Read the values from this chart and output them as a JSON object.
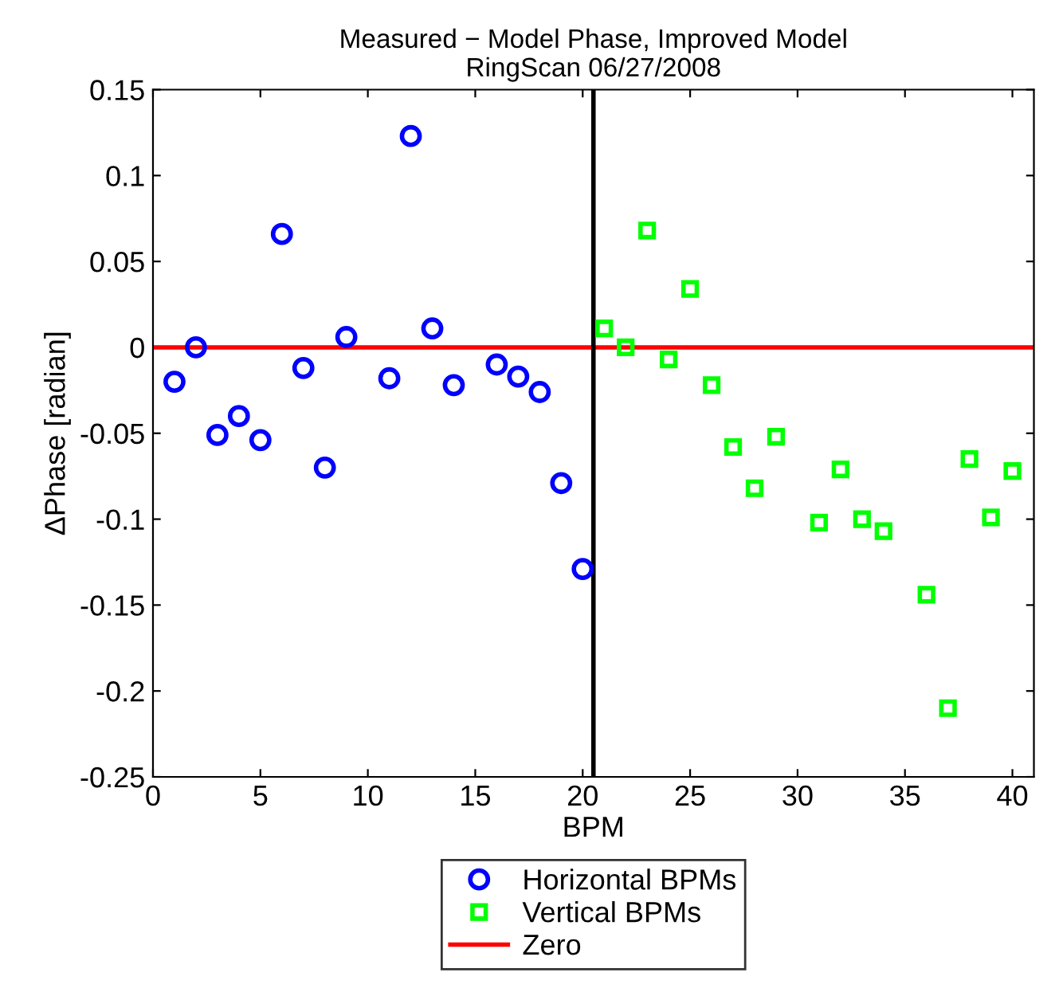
{
  "chart_data": {
    "type": "scatter",
    "title": "Measured − Model Phase, Improved Model\nRingScan 06/27/2008",
    "xlabel": "BPM",
    "ylabel": "ΔPhase [radian]",
    "series": [
      {
        "name": "Horizontal BPMs",
        "color": "#0000ff",
        "marker": "circle",
        "x": [
          1,
          2,
          3,
          4,
          5,
          6,
          7,
          8,
          9,
          11,
          12,
          13,
          14,
          16,
          17,
          18,
          19,
          20
        ],
        "values": [
          -0.02,
          0.0,
          -0.051,
          -0.04,
          -0.054,
          0.066,
          -0.012,
          -0.07,
          0.006,
          -0.018,
          0.123,
          0.011,
          -0.022,
          -0.01,
          -0.017,
          -0.026,
          -0.079,
          -0.129
        ]
      },
      {
        "name": "Vertical BPMs",
        "color": "#00ff00",
        "marker": "square",
        "x": [
          21,
          22,
          23,
          24,
          25,
          26,
          27,
          28,
          29,
          31,
          32,
          33,
          34,
          36,
          37,
          38,
          39,
          40
        ],
        "values": [
          0.011,
          0.0,
          0.068,
          -0.007,
          0.034,
          -0.022,
          -0.058,
          -0.082,
          -0.052,
          -0.102,
          -0.071,
          -0.1,
          -0.107,
          -0.144,
          -0.21,
          -0.065,
          -0.099,
          -0.072
        ]
      },
      {
        "name": "Zero",
        "type": "line",
        "color": "#ff0000",
        "marker": "none",
        "line_style": "solid",
        "x": [
          0,
          41
        ],
        "values": [
          0,
          0
        ]
      }
    ],
    "ref_lines": [
      {
        "axis": "x",
        "value": 20.5,
        "color": "#000000",
        "line_style": "solid"
      }
    ],
    "xlim": [
      0,
      41
    ],
    "ylim": [
      -0.25,
      0.15
    ],
    "xticks": [
      0,
      5,
      10,
      15,
      20,
      25,
      30,
      35,
      40
    ],
    "yticks": [
      -0.25,
      -0.2,
      -0.15,
      -0.1,
      -0.05,
      0,
      0.05,
      0.1,
      0.15
    ],
    "grid": false,
    "legend": "bottom"
  }
}
